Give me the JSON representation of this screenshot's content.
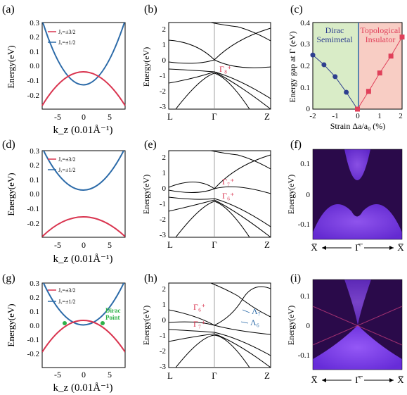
{
  "panels": {
    "a": {
      "label": "(a)",
      "ylabel": "Energy(eV)",
      "xlabel": "k_z (0.01Å⁻¹)",
      "yticks": [
        "0.3",
        "0.2",
        "0.1",
        "0.0",
        "-0.1",
        "-0.2"
      ],
      "xticks": [
        "-5",
        "0",
        "5"
      ],
      "legend": [
        "Jₓ=±3/2",
        "Jₓ=±1/2"
      ]
    },
    "b": {
      "label": "(b)",
      "ylabel": "Energy(eV)",
      "xticks": [
        "L",
        "Γ",
        "Z"
      ],
      "yticks": [
        "2",
        "1",
        "0",
        "-1",
        "-2",
        "-3"
      ],
      "annot": "Γ₈⁺"
    },
    "c": {
      "label": "(c)",
      "ylabel": "Energy gap at Γ (eV)",
      "xlabel": "Strain Δa/a₀ (%)",
      "yticks": [
        "0.4",
        "0.3",
        "0.2",
        "0.1",
        "0"
      ],
      "xticks": [
        "-2",
        "-1",
        "0",
        "1",
        "2"
      ],
      "region_left": [
        "Dirac",
        "Semimetal"
      ],
      "region_right": [
        "Topological",
        "Insulator"
      ]
    },
    "d": {
      "label": "(d)",
      "ylabel": "Energy(eV)",
      "xlabel": "k_z (0.01Å⁻¹)",
      "yticks": [
        "0.3",
        "0.2",
        "0.1",
        "0.0",
        "-0.1",
        "-0.2"
      ],
      "xticks": [
        "-5",
        "0",
        "5"
      ],
      "legend": [
        "Jₓ=±3/2",
        "Jₓ=±1/2"
      ]
    },
    "e": {
      "label": "(e)",
      "ylabel": "Energy(eV)",
      "xticks": [
        "L",
        "Γ",
        "Z"
      ],
      "yticks": [
        "2",
        "1",
        "0",
        "-1",
        "-2",
        "-3"
      ],
      "annot1": "Γ₇⁺",
      "annot2": "Γ₆⁺"
    },
    "f": {
      "label": "(f)",
      "ylabel": "Energy(eV)",
      "yticks": [
        "0.1",
        "0",
        "-0.1"
      ],
      "xticks": [
        "X̅",
        "Γ̅",
        "X̅"
      ]
    },
    "g": {
      "label": "(g)",
      "ylabel": "Energy(eV)",
      "xlabel": "k_z (0.01Å⁻¹)",
      "yticks": [
        "0.3",
        "0.2",
        "0.1",
        "0.0",
        "-0.1",
        "-0.2"
      ],
      "xticks": [
        "-5",
        "0",
        "5"
      ],
      "legend": [
        "Jₓ=±3/2",
        "Jₓ=±1/2"
      ],
      "dirac": [
        "Dirac",
        "Point"
      ]
    },
    "h": {
      "label": "(h)",
      "ylabel": "Energy(eV)",
      "xticks": [
        "L",
        "Γ",
        "Z"
      ],
      "yticks": [
        "2",
        "1",
        "0",
        "-1",
        "-2",
        "-3"
      ],
      "annot1": "Γ₆⁺",
      "annot2": "Γ₇⁺",
      "lambda1": "Λ₇",
      "lambda2": "Λ₆"
    },
    "i": {
      "label": "(i)",
      "ylabel": "Energy(eV)",
      "yticks": [
        "0.1",
        "0",
        "-0.1"
      ],
      "xticks": [
        "X̅",
        "Γ̅",
        "X̅"
      ]
    }
  },
  "chart_data": {
    "type": "scatter",
    "title": "",
    "xlabel": "Strain Δa/a₀ (%)",
    "ylabel": "Energy gap at Γ (eV)",
    "xlim": [
      -2,
      2
    ],
    "ylim": [
      0,
      0.4
    ],
    "series": [
      {
        "name": "Dirac Semimetal",
        "color": "#2e3f8f",
        "x": [
          -2,
          -1.5,
          -1,
          -0.5,
          0
        ],
        "y": [
          0.25,
          0.205,
          0.15,
          0.078,
          0.0
        ]
      },
      {
        "name": "Topological Insulator",
        "color": "#e0405a",
        "x": [
          0,
          0.5,
          1,
          1.5,
          2
        ],
        "y": [
          0.0,
          0.082,
          0.167,
          0.245,
          0.333
        ]
      }
    ]
  },
  "colors": {
    "red": "#d9344f",
    "blue": "#2b6aa8",
    "green": "#2fb24a",
    "navy": "#2e3f8f",
    "pink": "#e0405a",
    "shade_left": "#d9ecc7",
    "shade_right": "#f8cdc4"
  }
}
